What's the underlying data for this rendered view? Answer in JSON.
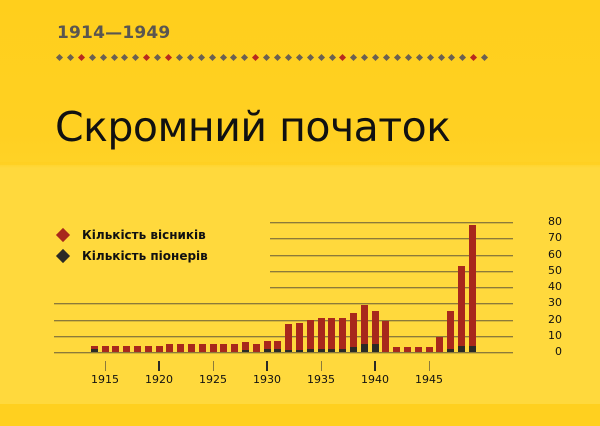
{
  "header": {
    "period": "1914—1949",
    "title": "Скромний початок",
    "divider_dots": {
      "count": 40,
      "red_indices": [
        2,
        8,
        10,
        18,
        26,
        38
      ],
      "colors": {
        "default": "#6b6151",
        "accent": "#b82a1e"
      }
    }
  },
  "legend": [
    {
      "label": "Кількість вісників",
      "color": "#a8281c"
    },
    {
      "label": "Кількість піонерів",
      "color": "#2b2a26"
    }
  ],
  "colors": {
    "background": "#ffd93d",
    "band": "#ffd022",
    "messengers": "#a8281c",
    "pioneers": "#2b2a26",
    "grid": "#8c7a3a"
  },
  "chart_data": {
    "type": "bar",
    "title": "Скромний початок",
    "subtitle": "1914—1949",
    "xlabel": "",
    "ylabel": "",
    "ylim": [
      0,
      80
    ],
    "yticks": [
      0,
      10,
      20,
      30,
      40,
      50,
      60,
      70,
      80
    ],
    "xtick_labels": [
      "1915",
      "1920",
      "1925",
      "1930",
      "1935",
      "1940",
      "1945"
    ],
    "grid": true,
    "legend_position": "upper-left",
    "stacked_overlay": true,
    "categories": [
      1914,
      1915,
      1916,
      1917,
      1918,
      1919,
      1920,
      1921,
      1922,
      1923,
      1924,
      1925,
      1926,
      1927,
      1928,
      1929,
      1930,
      1931,
      1932,
      1933,
      1934,
      1935,
      1936,
      1937,
      1938,
      1939,
      1940,
      1941,
      1942,
      1943,
      1944,
      1945,
      1946,
      1947,
      1948,
      1949
    ],
    "series": [
      {
        "name": "Кількість вісників",
        "color": "#a8281c",
        "values": [
          4,
          4,
          4,
          4,
          4,
          4,
          4,
          5,
          5,
          5,
          5,
          5,
          5,
          5,
          6,
          5,
          7,
          7,
          17,
          18,
          20,
          21,
          21,
          21,
          24,
          29,
          25,
          19,
          3,
          3,
          3,
          3,
          9,
          25,
          53,
          78
        ]
      },
      {
        "name": "Кількість піонерів",
        "color": "#2b2a26",
        "values": [
          2,
          0,
          0,
          0,
          0,
          0,
          0,
          0,
          0,
          0,
          0,
          0,
          0,
          0,
          1,
          0,
          2,
          2,
          1,
          1,
          2,
          2,
          2,
          2,
          3,
          5,
          5,
          0,
          0,
          0,
          0,
          0,
          0,
          2,
          4,
          4
        ]
      }
    ]
  }
}
